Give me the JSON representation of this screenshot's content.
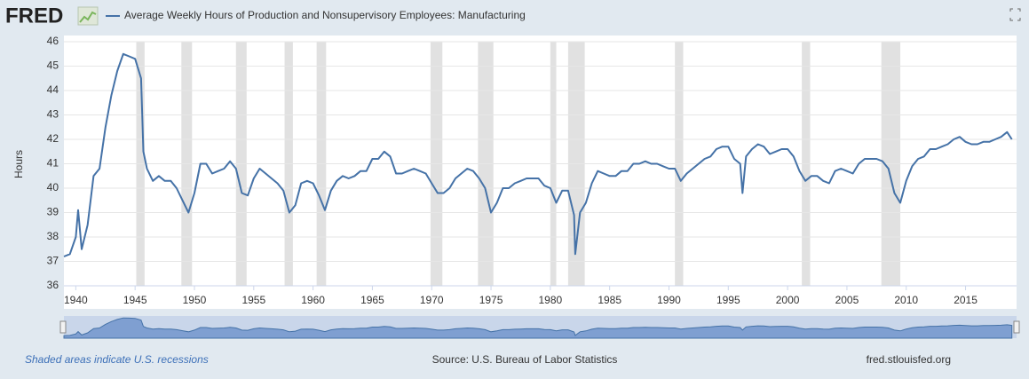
{
  "chart_data": {
    "type": "line",
    "logo": "FRED",
    "title": "Average Weekly Hours of Production and Nonsupervisory Employees: Manufacturing",
    "y_label": "Hours",
    "note": "Shaded areas indicate U.S. recessions",
    "source": "Source: U.S. Bureau of Labor Statistics",
    "site": "fred.stlouisfed.org",
    "color": "#4572a7",
    "xlim": [
      1939,
      2019.3
    ],
    "ylim": [
      36,
      46
    ],
    "xticks": [
      1940,
      1945,
      1950,
      1955,
      1960,
      1965,
      1970,
      1975,
      1980,
      1985,
      1990,
      1995,
      2000,
      2005,
      2010,
      2015
    ],
    "yticks": [
      36,
      37,
      38,
      39,
      40,
      41,
      42,
      43,
      44,
      45,
      46
    ],
    "grid": true,
    "recessions": [
      [
        1945.1,
        1945.8
      ],
      [
        1948.9,
        1949.8
      ],
      [
        1953.5,
        1954.4
      ],
      [
        1957.6,
        1958.3
      ],
      [
        1960.3,
        1961.1
      ],
      [
        1969.9,
        1970.9
      ],
      [
        1973.9,
        1975.2
      ],
      [
        1980.0,
        1980.5
      ],
      [
        1981.5,
        1982.9
      ],
      [
        1990.5,
        1991.2
      ],
      [
        2001.2,
        2001.9
      ],
      [
        2007.9,
        2009.5
      ]
    ],
    "x": [
      1939.0,
      1939.5,
      1940.0,
      1940.2,
      1940.5,
      1941.0,
      1941.5,
      1942.0,
      1942.5,
      1943.0,
      1943.5,
      1944.0,
      1944.5,
      1945.0,
      1945.5,
      1945.7,
      1946.0,
      1946.5,
      1947.0,
      1947.5,
      1948.0,
      1948.5,
      1949.0,
      1949.5,
      1950.0,
      1950.5,
      1951.0,
      1951.5,
      1952.0,
      1952.5,
      1953.0,
      1953.5,
      1954.0,
      1954.5,
      1955.0,
      1955.5,
      1956.0,
      1956.5,
      1957.0,
      1957.5,
      1958.0,
      1958.5,
      1959.0,
      1959.5,
      1960.0,
      1960.5,
      1961.0,
      1961.5,
      1962.0,
      1962.5,
      1963.0,
      1963.5,
      1964.0,
      1964.5,
      1965.0,
      1965.5,
      1966.0,
      1966.5,
      1967.0,
      1967.5,
      1968.0,
      1968.5,
      1969.0,
      1969.5,
      1970.0,
      1970.5,
      1971.0,
      1971.5,
      1972.0,
      1972.5,
      1973.0,
      1973.5,
      1974.0,
      1974.5,
      1975.0,
      1975.5,
      1976.0,
      1976.5,
      1977.0,
      1977.5,
      1978.0,
      1978.5,
      1979.0,
      1979.5,
      1980.0,
      1980.5,
      1981.0,
      1981.5,
      1982.0,
      1982.1,
      1982.5,
      1983.0,
      1983.5,
      1984.0,
      1984.5,
      1985.0,
      1985.5,
      1986.0,
      1986.5,
      1987.0,
      1987.5,
      1988.0,
      1988.5,
      1989.0,
      1989.5,
      1990.0,
      1990.5,
      1991.0,
      1991.5,
      1992.0,
      1992.5,
      1993.0,
      1993.5,
      1994.0,
      1994.5,
      1995.0,
      1995.5,
      1996.0,
      1996.2,
      1996.5,
      1997.0,
      1997.5,
      1998.0,
      1998.5,
      1999.0,
      1999.5,
      2000.0,
      2000.5,
      2001.0,
      2001.5,
      2002.0,
      2002.5,
      2003.0,
      2003.5,
      2004.0,
      2004.5,
      2005.0,
      2005.5,
      2006.0,
      2006.5,
      2007.0,
      2007.5,
      2008.0,
      2008.5,
      2009.0,
      2009.5,
      2010.0,
      2010.5,
      2011.0,
      2011.5,
      2012.0,
      2012.5,
      2013.0,
      2013.5,
      2014.0,
      2014.5,
      2015.0,
      2015.5,
      2016.0,
      2016.5,
      2017.0,
      2017.5,
      2018.0,
      2018.5,
      2018.9
    ],
    "values": [
      37.2,
      37.3,
      38.0,
      39.1,
      37.5,
      38.5,
      40.5,
      40.8,
      42.5,
      43.8,
      44.8,
      45.5,
      45.4,
      45.3,
      44.5,
      41.5,
      40.8,
      40.3,
      40.5,
      40.3,
      40.3,
      40.0,
      39.5,
      39.0,
      39.8,
      41.0,
      41.0,
      40.6,
      40.7,
      40.8,
      41.1,
      40.8,
      39.8,
      39.7,
      40.4,
      40.8,
      40.6,
      40.4,
      40.2,
      39.9,
      39.0,
      39.3,
      40.2,
      40.3,
      40.2,
      39.7,
      39.1,
      39.9,
      40.3,
      40.5,
      40.4,
      40.5,
      40.7,
      40.7,
      41.2,
      41.2,
      41.5,
      41.3,
      40.6,
      40.6,
      40.7,
      40.8,
      40.7,
      40.6,
      40.2,
      39.8,
      39.8,
      40.0,
      40.4,
      40.6,
      40.8,
      40.7,
      40.4,
      40.0,
      39.0,
      39.4,
      40.0,
      40.0,
      40.2,
      40.3,
      40.4,
      40.4,
      40.4,
      40.1,
      40.0,
      39.4,
      39.9,
      39.9,
      38.9,
      37.3,
      39.0,
      39.4,
      40.2,
      40.7,
      40.6,
      40.5,
      40.5,
      40.7,
      40.7,
      41.0,
      41.0,
      41.1,
      41.0,
      41.0,
      40.9,
      40.8,
      40.8,
      40.3,
      40.6,
      40.8,
      41.0,
      41.2,
      41.3,
      41.6,
      41.7,
      41.7,
      41.2,
      41.0,
      39.8,
      41.3,
      41.6,
      41.8,
      41.7,
      41.4,
      41.5,
      41.6,
      41.6,
      41.3,
      40.7,
      40.3,
      40.5,
      40.5,
      40.3,
      40.2,
      40.7,
      40.8,
      40.7,
      40.6,
      41.0,
      41.2,
      41.2,
      41.2,
      41.1,
      40.8,
      39.8,
      39.4,
      40.3,
      40.9,
      41.2,
      41.3,
      41.6,
      41.6,
      41.7,
      41.8,
      42.0,
      42.1,
      41.9,
      41.8,
      41.8,
      41.9,
      41.9,
      42.0,
      42.1,
      42.3,
      42.0
    ]
  }
}
